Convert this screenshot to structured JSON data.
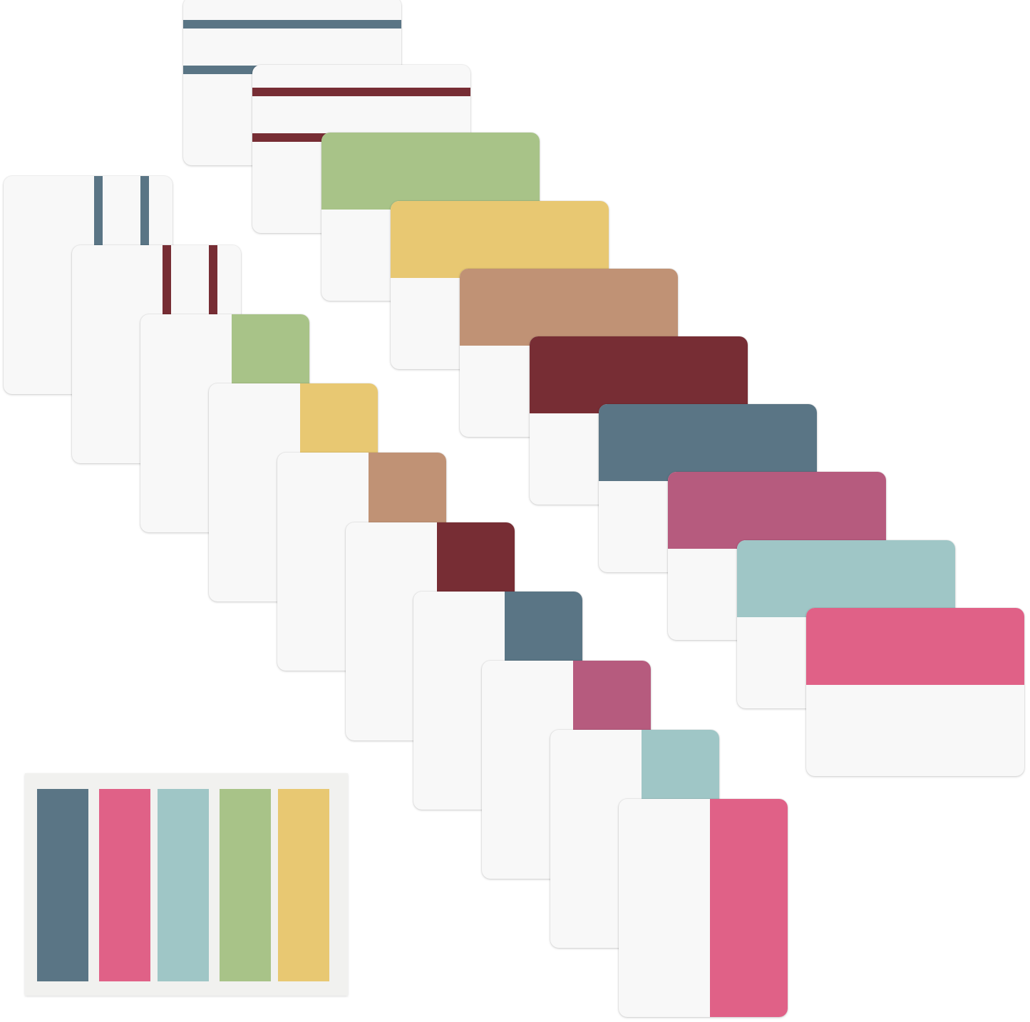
{
  "colors": {
    "slate": "#5a7585",
    "maroon": "#772d34",
    "green": "#a8c388",
    "yellow": "#e8c872",
    "tan": "#c09275",
    "mauve": "#b65b7e",
    "teal": "#9fc6c6",
    "pink": "#e06187"
  },
  "horizontal_tabs": [
    {
      "style": "striped",
      "color": "#5a7585"
    },
    {
      "style": "striped",
      "color": "#772d34"
    },
    {
      "style": "solid",
      "color": "#a8c388"
    },
    {
      "style": "solid",
      "color": "#e8c872"
    },
    {
      "style": "solid",
      "color": "#c09275"
    },
    {
      "style": "solid",
      "color": "#772d34"
    },
    {
      "style": "solid",
      "color": "#5a7585"
    },
    {
      "style": "solid",
      "color": "#b65b7e"
    },
    {
      "style": "solid",
      "color": "#9fc6c6"
    },
    {
      "style": "solid",
      "color": "#e06187"
    }
  ],
  "vertical_tabs": [
    {
      "style": "striped",
      "color": "#5a7585"
    },
    {
      "style": "striped",
      "color": "#772d34"
    },
    {
      "style": "solid",
      "color": "#a8c388"
    },
    {
      "style": "solid",
      "color": "#e8c872"
    },
    {
      "style": "solid",
      "color": "#c09275"
    },
    {
      "style": "solid",
      "color": "#772d34"
    },
    {
      "style": "solid",
      "color": "#5a7585"
    },
    {
      "style": "solid",
      "color": "#b65b7e"
    },
    {
      "style": "solid",
      "color": "#9fc6c6"
    },
    {
      "style": "solid",
      "color": "#e06187"
    }
  ],
  "dispenser_strips": [
    "#5a7585",
    "#e06187",
    "#9fc6c6",
    "#a8c388",
    "#e8c872"
  ]
}
